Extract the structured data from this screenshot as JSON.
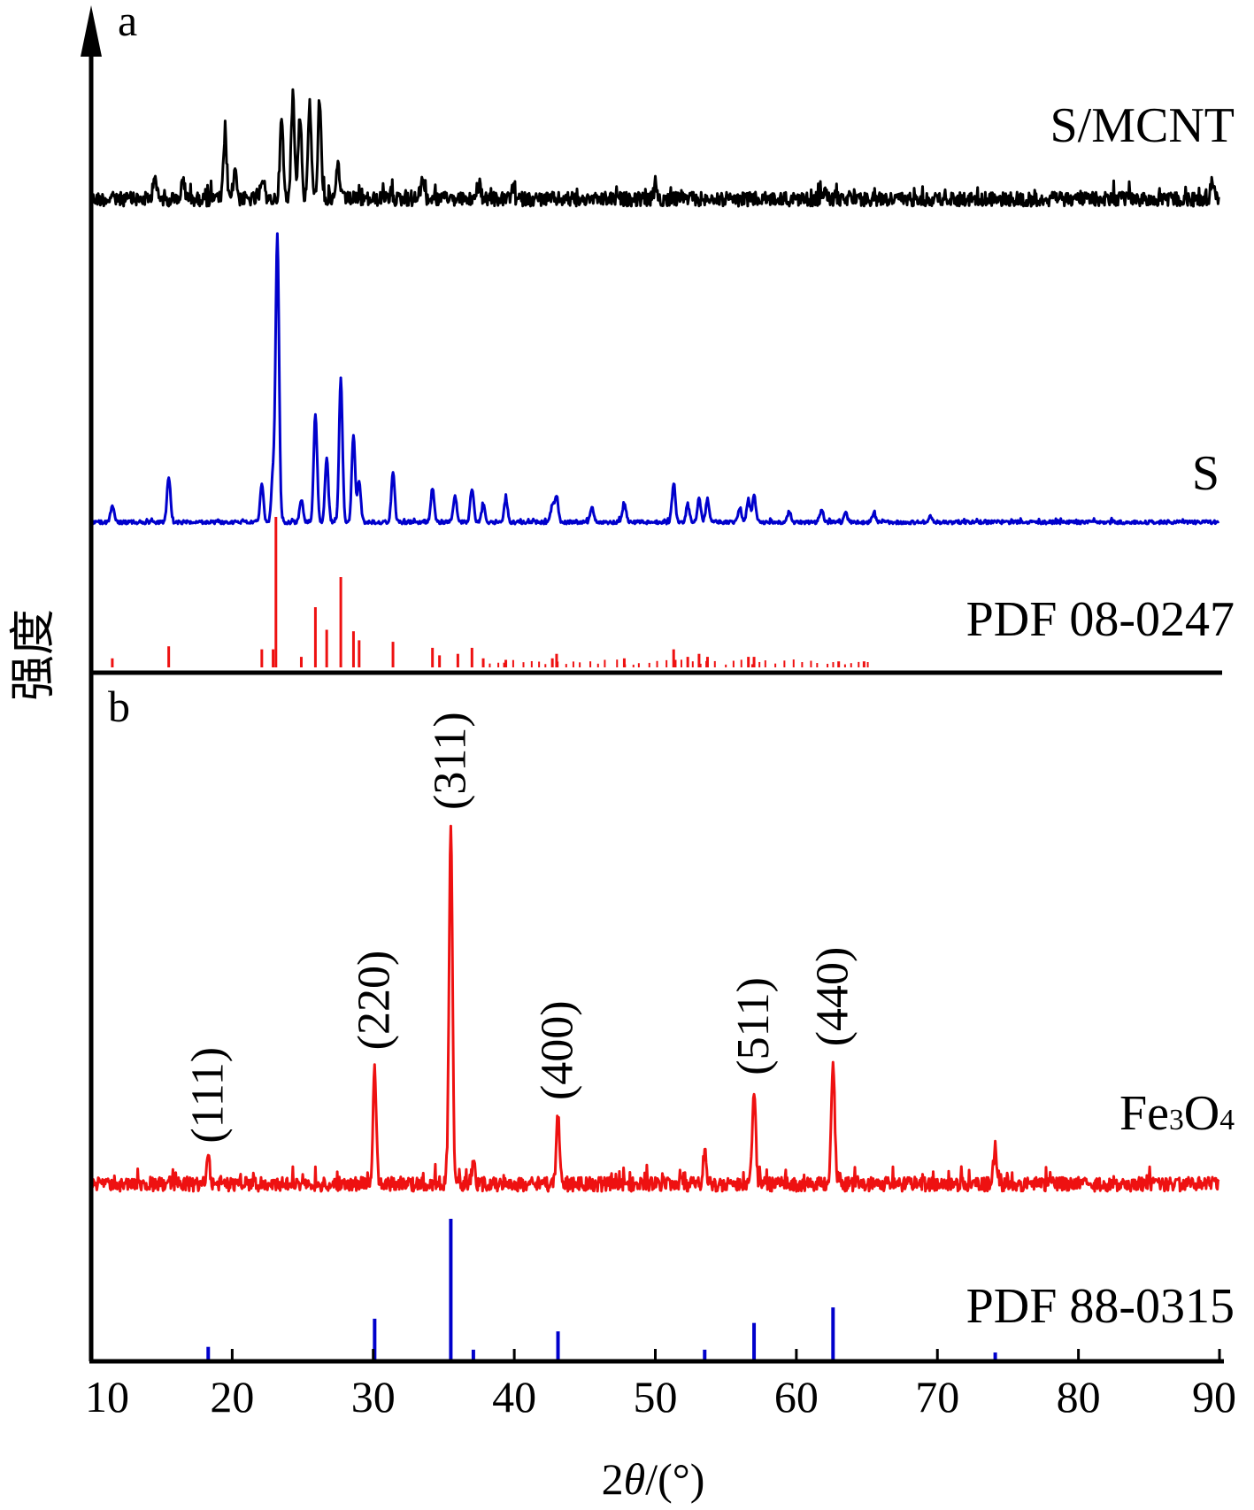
{
  "chart_data": {
    "type": "line",
    "xlabel": "2θ/(°)",
    "ylabel": "强度",
    "xlim": [
      10,
      90
    ],
    "x_ticks": [
      10,
      20,
      30,
      40,
      50,
      60,
      70,
      80,
      90
    ],
    "x_tick_labels": [
      "10",
      "20",
      "30",
      "40",
      "50",
      "60",
      "70",
      "80",
      "90"
    ],
    "panels": [
      {
        "label": "a",
        "series": [
          {
            "name": "S/MCNT",
            "color": "#000000",
            "kind": "pattern",
            "peaks": [
              [
                14.5,
                0.18
              ],
              [
                16.5,
                0.12
              ],
              [
                19.5,
                0.42
              ],
              [
                20.2,
                0.22
              ],
              [
                22.2,
                0.12
              ],
              [
                23.5,
                0.55
              ],
              [
                24.3,
                0.72
              ],
              [
                24.8,
                0.6
              ],
              [
                25.5,
                0.66
              ],
              [
                26.2,
                0.7
              ],
              [
                27.5,
                0.25
              ],
              [
                33.5,
                0.15
              ],
              [
                37.5,
                0.1
              ],
              [
                50.0,
                0.06
              ],
              [
                62.0,
                0.06
              ],
              [
                89.5,
                0.12
              ]
            ]
          },
          {
            "name": "S",
            "color": "#0000cc",
            "kind": "pattern",
            "peaks": [
              [
                11.5,
                0.06
              ],
              [
                15.5,
                0.16
              ],
              [
                22.1,
                0.13
              ],
              [
                22.9,
                0.17
              ],
              [
                23.2,
                1.0
              ],
              [
                24.9,
                0.08
              ],
              [
                25.9,
                0.38
              ],
              [
                26.7,
                0.22
              ],
              [
                27.7,
                0.5
              ],
              [
                28.6,
                0.3
              ],
              [
                29.0,
                0.14
              ],
              [
                31.4,
                0.17
              ],
              [
                34.2,
                0.12
              ],
              [
                35.8,
                0.09
              ],
              [
                37.0,
                0.12
              ],
              [
                37.8,
                0.06
              ],
              [
                39.4,
                0.08
              ],
              [
                42.7,
                0.06
              ],
              [
                43.0,
                0.09
              ],
              [
                45.5,
                0.05
              ],
              [
                47.8,
                0.07
              ],
              [
                51.3,
                0.13
              ],
              [
                52.3,
                0.06
              ],
              [
                53.1,
                0.08
              ],
              [
                53.7,
                0.08
              ],
              [
                56.0,
                0.05
              ],
              [
                56.6,
                0.08
              ],
              [
                57.0,
                0.09
              ],
              [
                59.5,
                0.04
              ],
              [
                61.8,
                0.04
              ],
              [
                63.5,
                0.03
              ],
              [
                65.5,
                0.03
              ],
              [
                69.5,
                0.02
              ]
            ]
          },
          {
            "name": "PDF 08-0247",
            "color": "#ee1111",
            "kind": "sticks",
            "peaks": [
              [
                11.5,
                0.06
              ],
              [
                15.5,
                0.14
              ],
              [
                22.1,
                0.12
              ],
              [
                22.9,
                0.12
              ],
              [
                23.1,
                1.0
              ],
              [
                24.9,
                0.07
              ],
              [
                25.9,
                0.4
              ],
              [
                26.7,
                0.25
              ],
              [
                27.7,
                0.6
              ],
              [
                28.6,
                0.24
              ],
              [
                29.0,
                0.18
              ],
              [
                31.4,
                0.17
              ],
              [
                34.2,
                0.13
              ],
              [
                34.7,
                0.08
              ],
              [
                36.0,
                0.09
              ],
              [
                37.0,
                0.13
              ],
              [
                37.8,
                0.06
              ],
              [
                39.4,
                0.05
              ],
              [
                42.7,
                0.06
              ],
              [
                43.0,
                0.09
              ],
              [
                47.8,
                0.06
              ],
              [
                51.3,
                0.12
              ],
              [
                52.3,
                0.07
              ],
              [
                53.1,
                0.09
              ],
              [
                53.7,
                0.07
              ],
              [
                56.6,
                0.07
              ],
              [
                57.0,
                0.07
              ],
              [
                63.0,
                0.04
              ],
              [
                64.8,
                0.04
              ]
            ]
          }
        ]
      },
      {
        "label": "b",
        "series": [
          {
            "name": "Fe3O4",
            "name_parts": [
              "Fe",
              "3",
              "O",
              "4"
            ],
            "color": "#ee1111",
            "kind": "pattern",
            "peaks": [
              [
                18.3,
                0.07
              ],
              [
                30.1,
                0.33
              ],
              [
                35.5,
                1.0
              ],
              [
                37.1,
                0.06
              ],
              [
                43.1,
                0.19
              ],
              [
                53.5,
                0.09
              ],
              [
                57.0,
                0.26
              ],
              [
                62.6,
                0.34
              ],
              [
                74.1,
                0.08
              ]
            ],
            "annotations": [
              {
                "x": 18.3,
                "text": "(111)"
              },
              {
                "x": 30.1,
                "text": "(220)"
              },
              {
                "x": 35.5,
                "text": "(311)"
              },
              {
                "x": 43.1,
                "text": "(400)"
              },
              {
                "x": 57.0,
                "text": "(511)"
              },
              {
                "x": 62.6,
                "text": "(440)"
              }
            ]
          },
          {
            "name": "PDF 88-0315",
            "color": "#0000cc",
            "kind": "sticks",
            "peaks": [
              [
                18.3,
                0.09
              ],
              [
                30.1,
                0.29
              ],
              [
                35.5,
                1.0
              ],
              [
                37.1,
                0.07
              ],
              [
                43.1,
                0.2
              ],
              [
                53.5,
                0.07
              ],
              [
                57.0,
                0.26
              ],
              [
                62.6,
                0.37
              ],
              [
                74.1,
                0.05
              ]
            ]
          }
        ]
      }
    ]
  }
}
